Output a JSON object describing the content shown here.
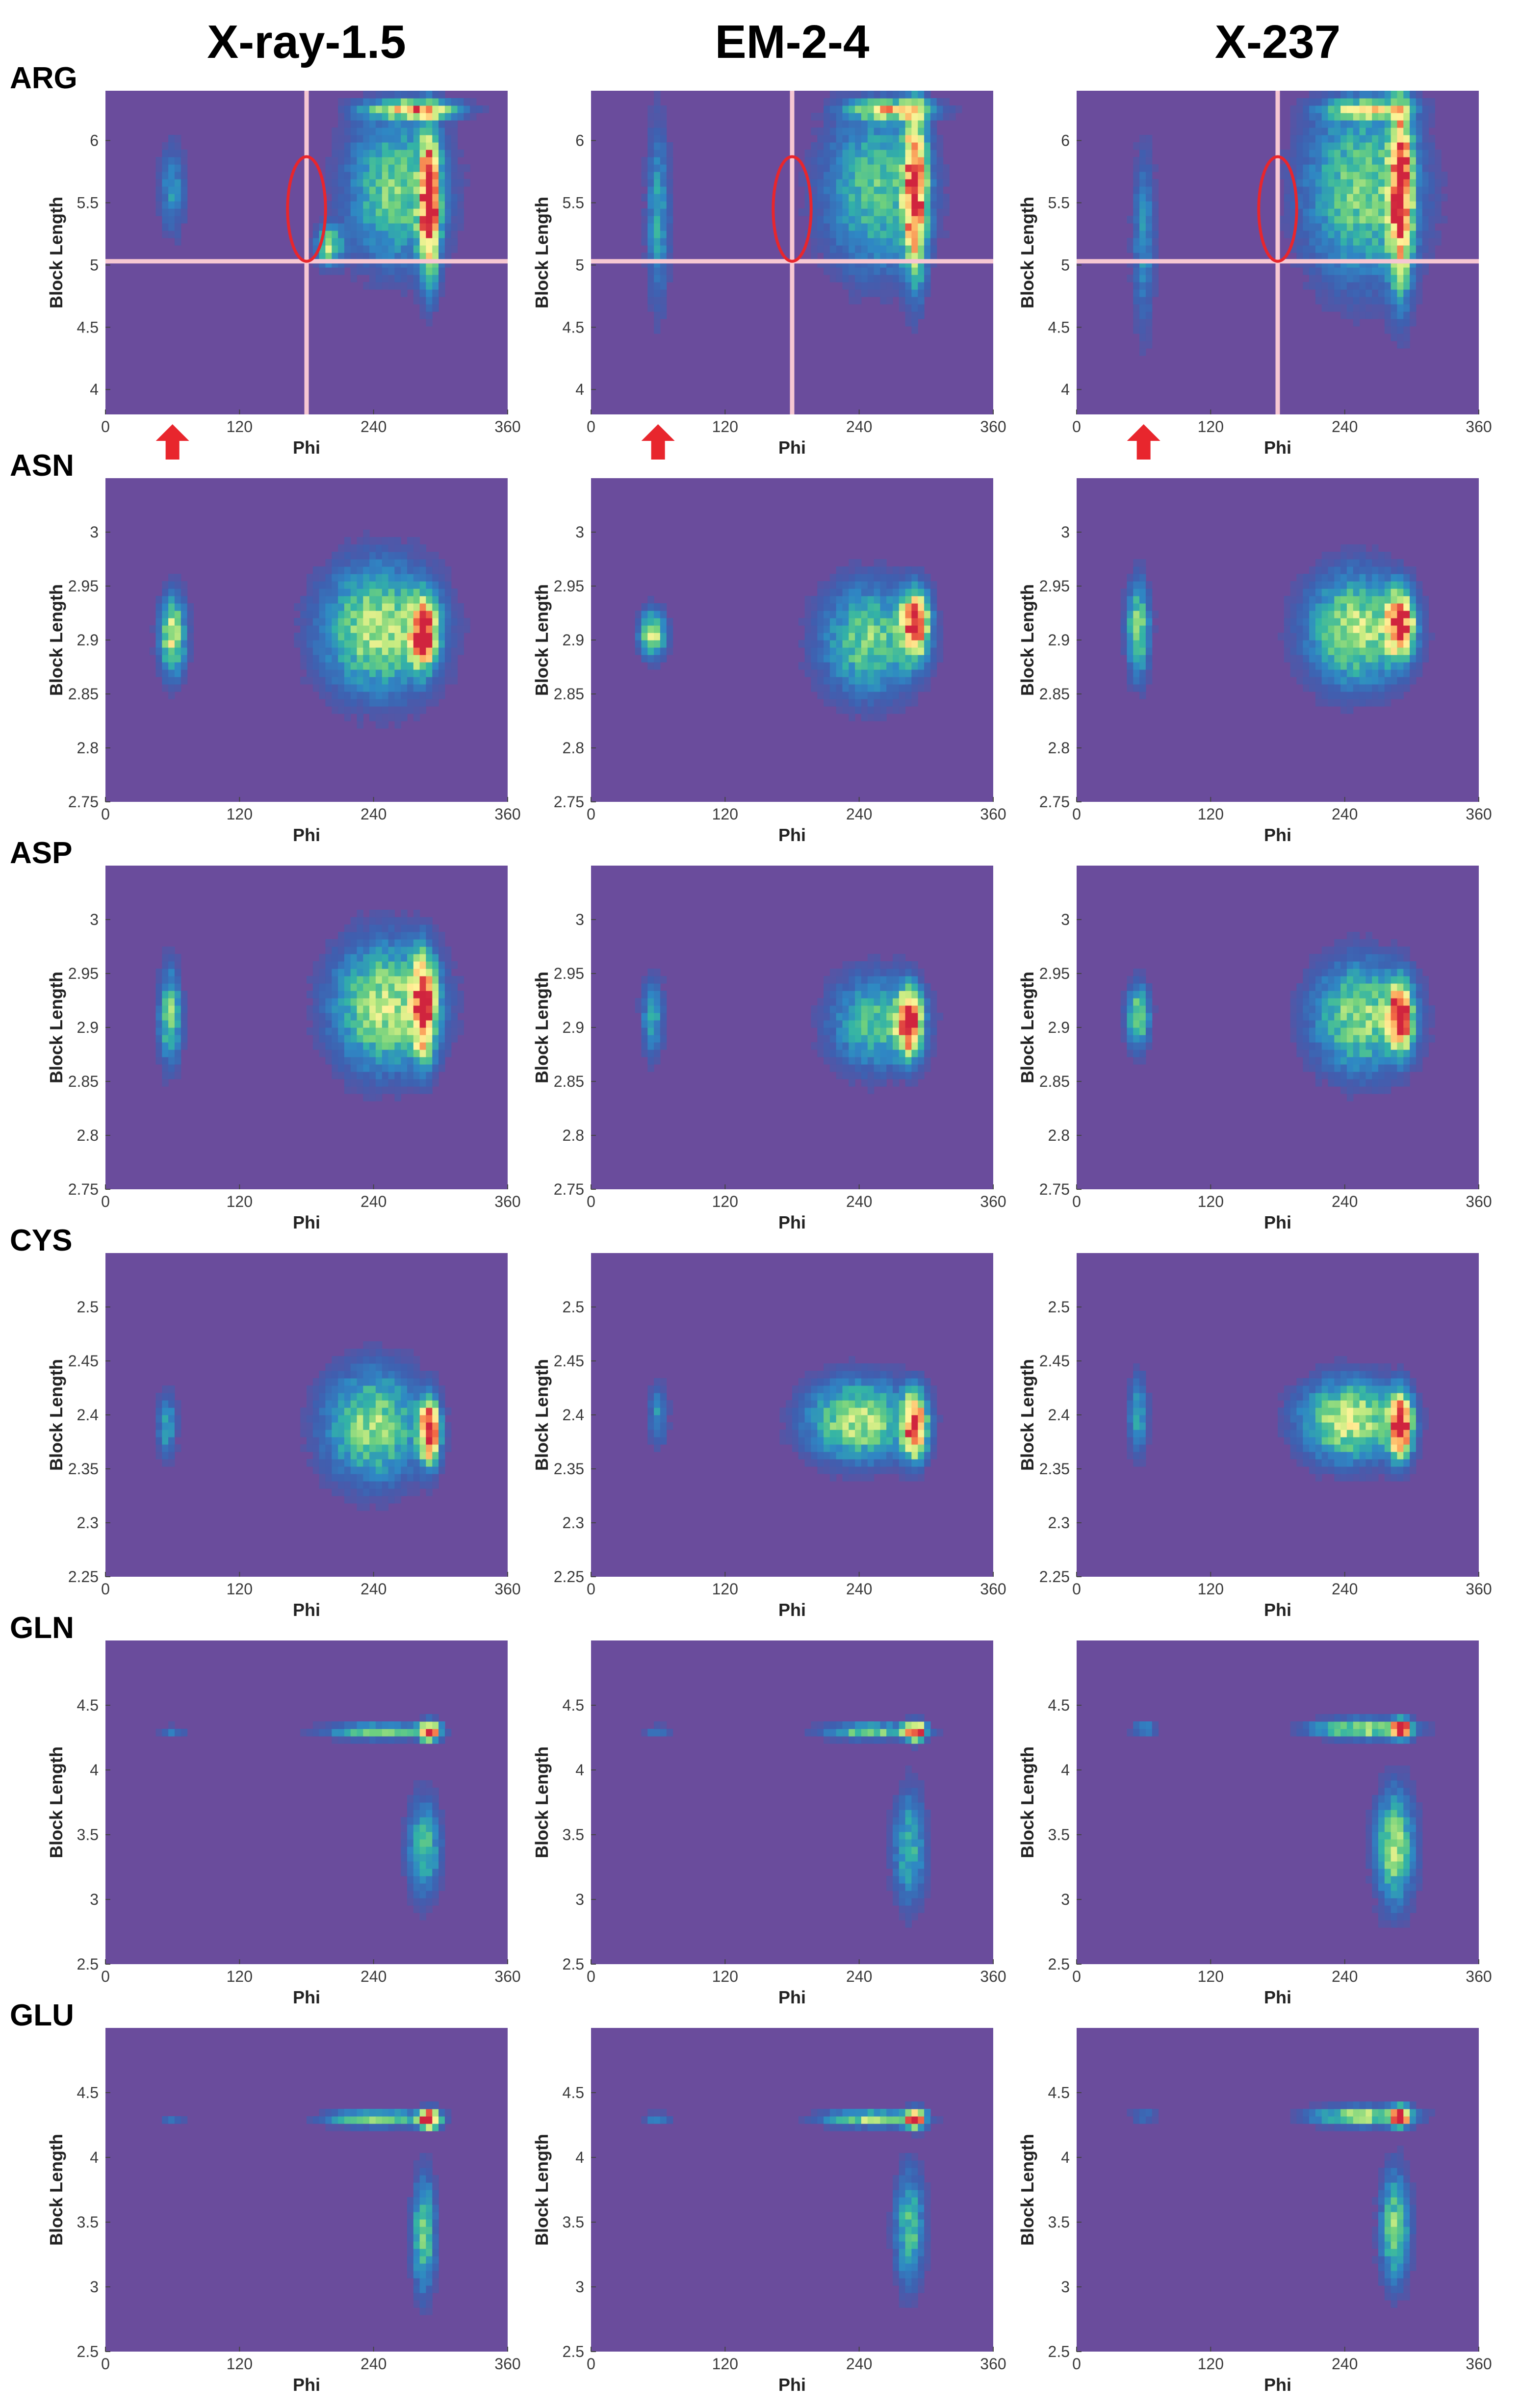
{
  "figure": {
    "columns": [
      "X-ray-1.5",
      "EM-2-4",
      "X-237"
    ],
    "rows": [
      "ARG",
      "ASN",
      "ASP",
      "CYS",
      "GLN",
      "GLU"
    ]
  },
  "colors": {
    "background": "#6a4c9c",
    "colormap": [
      "#6a4c9c",
      "#3f5fb0",
      "#2f87c4",
      "#33b3a6",
      "#6fd07e",
      "#c9ec82",
      "#fff49a",
      "#fdb766",
      "#f26b45",
      "#d0243e"
    ],
    "guide_lines": "#f6c7d2",
    "annotation": "#e8262d"
  },
  "chart_data": [
    {
      "type": "heatmap",
      "dataset": "X-ray-1.5",
      "residue": "ARG",
      "xlabel": "Phi",
      "ylabel": "Block Length",
      "xlim": [
        0,
        360
      ],
      "ylim": [
        3.8,
        6.4
      ],
      "xticks": [
        "0",
        "120",
        "240",
        "360"
      ],
      "yticks": [
        "4",
        "4.5",
        "5",
        "5.5",
        "6"
      ],
      "density_clusters": [
        {
          "phi": 60,
          "length": 5.6,
          "spread_phi": 8,
          "spread_length": 0.25,
          "peak": 0.25
        },
        {
          "phi": 260,
          "length": 5.6,
          "spread_phi": 30,
          "spread_length": 0.4,
          "peak": 0.45
        },
        {
          "phi": 290,
          "length": 5.5,
          "spread_phi": 6,
          "spread_length": 0.4,
          "peak": 0.95
        },
        {
          "phi": 275,
          "length": 6.25,
          "spread_phi": 28,
          "spread_length": 0.05,
          "peak": 0.7
        },
        {
          "phi": 200,
          "length": 5.15,
          "spread_phi": 8,
          "spread_length": 0.1,
          "peak": 0.5
        }
      ],
      "reference_lines": {
        "phi": 180,
        "length": 5.03
      },
      "circle": {
        "phi": 180,
        "length": 5.45,
        "r_phi": 17,
        "r_length": 0.42
      },
      "arrow_phi": 60
    },
    {
      "type": "heatmap",
      "dataset": "EM-2-4",
      "residue": "ARG",
      "xlabel": "Phi",
      "ylabel": "Block Length",
      "xlim": [
        0,
        360
      ],
      "ylim": [
        3.8,
        6.4
      ],
      "xticks": [
        "0",
        "120",
        "240",
        "360"
      ],
      "yticks": [
        "4",
        "4.5",
        "5",
        "5.5",
        "6"
      ],
      "density_clusters": [
        {
          "phi": 60,
          "length": 5.4,
          "spread_phi": 7,
          "spread_length": 0.5,
          "peak": 0.3
        },
        {
          "phi": 255,
          "length": 5.6,
          "spread_phi": 32,
          "spread_length": 0.45,
          "peak": 0.4
        },
        {
          "phi": 290,
          "length": 5.6,
          "spread_phi": 7,
          "spread_length": 0.45,
          "peak": 0.95
        },
        {
          "phi": 270,
          "length": 6.25,
          "spread_phi": 25,
          "spread_length": 0.05,
          "peak": 0.6
        }
      ],
      "reference_lines": {
        "phi": 180,
        "length": 5.03
      },
      "circle": {
        "phi": 180,
        "length": 5.45,
        "r_phi": 17,
        "r_length": 0.42
      },
      "arrow_phi": 60
    },
    {
      "type": "heatmap",
      "dataset": "X-237",
      "residue": "ARG",
      "xlabel": "Phi",
      "ylabel": "Block Length",
      "xlim": [
        0,
        360
      ],
      "ylim": [
        3.8,
        6.4
      ],
      "xticks": [
        "0",
        "120",
        "240",
        "360"
      ],
      "yticks": [
        "4",
        "4.5",
        "5",
        "5.5",
        "6"
      ],
      "density_clusters": [
        {
          "phi": 60,
          "length": 5.2,
          "spread_phi": 7,
          "spread_length": 0.5,
          "peak": 0.25
        },
        {
          "phi": 255,
          "length": 5.6,
          "spread_phi": 35,
          "spread_length": 0.5,
          "peak": 0.45
        },
        {
          "phi": 290,
          "length": 5.6,
          "spread_phi": 7,
          "spread_length": 0.5,
          "peak": 0.95
        },
        {
          "phi": 260,
          "length": 6.25,
          "spread_phi": 25,
          "spread_length": 0.05,
          "peak": 0.5
        }
      ],
      "reference_lines": {
        "phi": 180,
        "length": 5.03
      },
      "circle": {
        "phi": 180,
        "length": 5.45,
        "r_phi": 17,
        "r_length": 0.42
      },
      "arrow_phi": 60
    },
    {
      "type": "heatmap",
      "dataset": "X-ray-1.5",
      "residue": "ASN",
      "xlabel": "Phi",
      "ylabel": "Block Length",
      "xlim": [
        0,
        360
      ],
      "ylim": [
        2.75,
        3.05
      ],
      "xticks": [
        "0",
        "120",
        "240",
        "360"
      ],
      "yticks": [
        "2.75",
        "2.8",
        "2.85",
        "2.9",
        "2.95",
        "3"
      ],
      "density_clusters": [
        {
          "phi": 60,
          "length": 2.905,
          "spread_phi": 8,
          "spread_length": 0.025,
          "peak": 0.6
        },
        {
          "phi": 245,
          "length": 2.91,
          "spread_phi": 35,
          "spread_length": 0.04,
          "peak": 0.55
        },
        {
          "phi": 285,
          "length": 2.907,
          "spread_phi": 8,
          "spread_length": 0.02,
          "peak": 1.0
        }
      ]
    },
    {
      "type": "heatmap",
      "dataset": "EM-2-4",
      "residue": "ASN",
      "xlabel": "Phi",
      "ylabel": "Block Length",
      "xlim": [
        0,
        360
      ],
      "ylim": [
        2.75,
        3.05
      ],
      "xticks": [
        "0",
        "120",
        "240",
        "360"
      ],
      "yticks": [
        "2.75",
        "2.8",
        "2.85",
        "2.9",
        "2.95",
        "3"
      ],
      "density_clusters": [
        {
          "phi": 55,
          "length": 2.905,
          "spread_phi": 8,
          "spread_length": 0.015,
          "peak": 0.55
        },
        {
          "phi": 250,
          "length": 2.9,
          "spread_phi": 30,
          "spread_length": 0.035,
          "peak": 0.45
        },
        {
          "phi": 290,
          "length": 2.915,
          "spread_phi": 8,
          "spread_length": 0.02,
          "peak": 1.0
        }
      ]
    },
    {
      "type": "heatmap",
      "dataset": "X-237",
      "residue": "ASN",
      "xlabel": "Phi",
      "ylabel": "Block Length",
      "xlim": [
        0,
        360
      ],
      "ylim": [
        2.75,
        3.05
      ],
      "xticks": [
        "0",
        "120",
        "240",
        "360"
      ],
      "yticks": [
        "2.75",
        "2.8",
        "2.85",
        "2.9",
        "2.95",
        "3"
      ],
      "density_clusters": [
        {
          "phi": 55,
          "length": 2.91,
          "spread_phi": 7,
          "spread_length": 0.03,
          "peak": 0.5
        },
        {
          "phi": 250,
          "length": 2.91,
          "spread_phi": 30,
          "spread_length": 0.035,
          "peak": 0.55
        },
        {
          "phi": 290,
          "length": 2.915,
          "spread_phi": 8,
          "spread_length": 0.02,
          "peak": 1.0
        }
      ]
    },
    {
      "type": "heatmap",
      "dataset": "X-ray-1.5",
      "residue": "ASP",
      "xlabel": "Phi",
      "ylabel": "Block Length",
      "xlim": [
        0,
        360
      ],
      "ylim": [
        2.75,
        3.05
      ],
      "xticks": [
        "0",
        "120",
        "240",
        "360"
      ],
      "yticks": [
        "2.75",
        "2.8",
        "2.85",
        "2.9",
        "2.95",
        "3"
      ],
      "density_clusters": [
        {
          "phi": 58,
          "length": 2.91,
          "spread_phi": 7,
          "spread_length": 0.03,
          "peak": 0.45
        },
        {
          "phi": 250,
          "length": 2.92,
          "spread_phi": 32,
          "spread_length": 0.04,
          "peak": 0.55
        },
        {
          "phi": 285,
          "length": 2.92,
          "spread_phi": 7,
          "spread_length": 0.03,
          "peak": 1.0
        }
      ]
    },
    {
      "type": "heatmap",
      "dataset": "EM-2-4",
      "residue": "ASP",
      "xlabel": "Phi",
      "ylabel": "Block Length",
      "xlim": [
        0,
        360
      ],
      "ylim": [
        2.75,
        3.05
      ],
      "xticks": [
        "0",
        "120",
        "240",
        "360"
      ],
      "yticks": [
        "2.75",
        "2.8",
        "2.85",
        "2.9",
        "2.95",
        "3"
      ],
      "density_clusters": [
        {
          "phi": 55,
          "length": 2.91,
          "spread_phi": 7,
          "spread_length": 0.025,
          "peak": 0.3
        },
        {
          "phi": 255,
          "length": 2.905,
          "spread_phi": 28,
          "spread_length": 0.03,
          "peak": 0.4
        },
        {
          "phi": 285,
          "length": 2.905,
          "spread_phi": 7,
          "spread_length": 0.02,
          "peak": 1.0
        }
      ]
    },
    {
      "type": "heatmap",
      "dataset": "X-237",
      "residue": "ASP",
      "xlabel": "Phi",
      "ylabel": "Block Length",
      "xlim": [
        0,
        360
      ],
      "ylim": [
        2.75,
        3.05
      ],
      "xticks": [
        "0",
        "120",
        "240",
        "360"
      ],
      "yticks": [
        "2.75",
        "2.8",
        "2.85",
        "2.9",
        "2.95",
        "3"
      ],
      "density_clusters": [
        {
          "phi": 55,
          "length": 2.91,
          "spread_phi": 7,
          "spread_length": 0.02,
          "peak": 0.5
        },
        {
          "phi": 255,
          "length": 2.91,
          "spread_phi": 30,
          "spread_length": 0.035,
          "peak": 0.5
        },
        {
          "phi": 290,
          "length": 2.91,
          "spread_phi": 7,
          "spread_length": 0.02,
          "peak": 1.0
        }
      ]
    },
    {
      "type": "heatmap",
      "dataset": "X-ray-1.5",
      "residue": "CYS",
      "xlabel": "Phi",
      "ylabel": "Block Length",
      "xlim": [
        0,
        360
      ],
      "ylim": [
        2.25,
        2.55
      ],
      "xticks": [
        "0",
        "120",
        "240",
        "360"
      ],
      "yticks": [
        "2.25",
        "2.3",
        "2.35",
        "2.4",
        "2.45",
        "2.5"
      ],
      "density_clusters": [
        {
          "phi": 55,
          "length": 2.39,
          "spread_phi": 6,
          "spread_length": 0.02,
          "peak": 0.3
        },
        {
          "phi": 240,
          "length": 2.39,
          "spread_phi": 30,
          "spread_length": 0.035,
          "peak": 0.5
        },
        {
          "phi": 290,
          "length": 2.385,
          "spread_phi": 6,
          "spread_length": 0.02,
          "peak": 1.0
        }
      ]
    },
    {
      "type": "heatmap",
      "dataset": "EM-2-4",
      "residue": "CYS",
      "xlabel": "Phi",
      "ylabel": "Block Length",
      "xlim": [
        0,
        360
      ],
      "ylim": [
        2.25,
        2.55
      ],
      "xticks": [
        "0",
        "120",
        "240",
        "360"
      ],
      "yticks": [
        "2.25",
        "2.3",
        "2.35",
        "2.4",
        "2.45",
        "2.5"
      ],
      "density_clusters": [
        {
          "phi": 60,
          "length": 2.4,
          "spread_phi": 6,
          "spread_length": 0.02,
          "peak": 0.25
        },
        {
          "phi": 240,
          "length": 2.395,
          "spread_phi": 32,
          "spread_length": 0.025,
          "peak": 0.55
        },
        {
          "phi": 290,
          "length": 2.39,
          "spread_phi": 7,
          "spread_length": 0.02,
          "peak": 1.0
        }
      ]
    },
    {
      "type": "heatmap",
      "dataset": "X-237",
      "residue": "CYS",
      "xlabel": "Phi",
      "ylabel": "Block Length",
      "xlim": [
        0,
        360
      ],
      "ylim": [
        2.25,
        2.55
      ],
      "xticks": [
        "0",
        "120",
        "240",
        "360"
      ],
      "yticks": [
        "2.25",
        "2.3",
        "2.35",
        "2.4",
        "2.45",
        "2.5"
      ],
      "density_clusters": [
        {
          "phi": 55,
          "length": 2.4,
          "spread_phi": 6,
          "spread_length": 0.025,
          "peak": 0.3
        },
        {
          "phi": 245,
          "length": 2.395,
          "spread_phi": 30,
          "spread_length": 0.025,
          "peak": 0.6
        },
        {
          "phi": 290,
          "length": 2.39,
          "spread_phi": 7,
          "spread_length": 0.02,
          "peak": 1.0
        }
      ]
    },
    {
      "type": "heatmap",
      "dataset": "X-ray-1.5",
      "residue": "GLN",
      "xlabel": "Phi",
      "ylabel": "Block Length",
      "xlim": [
        0,
        360
      ],
      "ylim": [
        2.5,
        5.0
      ],
      "xticks": [
        "0",
        "120",
        "240",
        "360"
      ],
      "yticks": [
        "2.5",
        "3",
        "3.5",
        "4",
        "4.5"
      ],
      "density_clusters": [
        {
          "phi": 60,
          "length": 4.3,
          "spread_phi": 8,
          "spread_length": 0.03,
          "peak": 0.2
        },
        {
          "phi": 245,
          "length": 4.3,
          "spread_phi": 32,
          "spread_length": 0.04,
          "peak": 0.45
        },
        {
          "phi": 290,
          "length": 4.3,
          "spread_phi": 6,
          "spread_length": 0.05,
          "peak": 1.0
        },
        {
          "phi": 285,
          "length": 3.4,
          "spread_phi": 10,
          "spread_length": 0.25,
          "peak": 0.4
        }
      ]
    },
    {
      "type": "heatmap",
      "dataset": "EM-2-4",
      "residue": "GLN",
      "xlabel": "Phi",
      "ylabel": "Block Length",
      "xlim": [
        0,
        360
      ],
      "ylim": [
        2.5,
        5.0
      ],
      "xticks": [
        "0",
        "120",
        "240",
        "360"
      ],
      "yticks": [
        "2.5",
        "3",
        "3.5",
        "4",
        "4.5"
      ],
      "density_clusters": [
        {
          "phi": 60,
          "length": 4.3,
          "spread_phi": 8,
          "spread_length": 0.03,
          "peak": 0.2
        },
        {
          "phi": 250,
          "length": 4.3,
          "spread_phi": 30,
          "spread_length": 0.04,
          "peak": 0.45
        },
        {
          "phi": 290,
          "length": 4.3,
          "spread_phi": 6,
          "spread_length": 0.05,
          "peak": 1.0
        },
        {
          "phi": 285,
          "length": 3.4,
          "spread_phi": 10,
          "spread_length": 0.3,
          "peak": 0.35
        }
      ]
    },
    {
      "type": "heatmap",
      "dataset": "X-237",
      "residue": "GLN",
      "xlabel": "Phi",
      "ylabel": "Block Length",
      "xlim": [
        0,
        360
      ],
      "ylim": [
        2.5,
        5.0
      ],
      "xticks": [
        "0",
        "120",
        "240",
        "360"
      ],
      "yticks": [
        "2.5",
        "3",
        "3.5",
        "4",
        "4.5"
      ],
      "density_clusters": [
        {
          "phi": 60,
          "length": 4.32,
          "spread_phi": 8,
          "spread_length": 0.03,
          "peak": 0.3
        },
        {
          "phi": 255,
          "length": 4.32,
          "spread_phi": 30,
          "spread_length": 0.05,
          "peak": 0.55
        },
        {
          "phi": 290,
          "length": 4.32,
          "spread_phi": 6,
          "spread_length": 0.05,
          "peak": 1.0
        },
        {
          "phi": 285,
          "length": 3.4,
          "spread_phi": 12,
          "spread_length": 0.3,
          "peak": 0.5
        }
      ]
    },
    {
      "type": "heatmap",
      "dataset": "X-ray-1.5",
      "residue": "GLU",
      "xlabel": "Phi",
      "ylabel": "Block Length",
      "xlim": [
        0,
        360
      ],
      "ylim": [
        2.5,
        5.0
      ],
      "xticks": [
        "0",
        "120",
        "240",
        "360"
      ],
      "yticks": [
        "2.5",
        "3",
        "3.5",
        "4",
        "4.5"
      ],
      "density_clusters": [
        {
          "phi": 60,
          "length": 4.3,
          "spread_phi": 8,
          "spread_length": 0.03,
          "peak": 0.15
        },
        {
          "phi": 245,
          "length": 4.3,
          "spread_phi": 32,
          "spread_length": 0.04,
          "peak": 0.5
        },
        {
          "phi": 290,
          "length": 4.3,
          "spread_phi": 6,
          "spread_length": 0.05,
          "peak": 1.0
        },
        {
          "phi": 285,
          "length": 3.4,
          "spread_phi": 7,
          "spread_length": 0.3,
          "peak": 0.45
        }
      ]
    },
    {
      "type": "heatmap",
      "dataset": "EM-2-4",
      "residue": "GLU",
      "xlabel": "Phi",
      "ylabel": "Block Length",
      "xlim": [
        0,
        360
      ],
      "ylim": [
        2.5,
        5.0
      ],
      "xticks": [
        "0",
        "120",
        "240",
        "360"
      ],
      "yticks": [
        "2.5",
        "3",
        "3.5",
        "4",
        "4.5"
      ],
      "density_clusters": [
        {
          "phi": 60,
          "length": 4.3,
          "spread_phi": 8,
          "spread_length": 0.03,
          "peak": 0.25
        },
        {
          "phi": 250,
          "length": 4.3,
          "spread_phi": 30,
          "spread_length": 0.04,
          "peak": 0.5
        },
        {
          "phi": 290,
          "length": 4.3,
          "spread_phi": 6,
          "spread_length": 0.05,
          "peak": 1.0
        },
        {
          "phi": 285,
          "length": 3.45,
          "spread_phi": 9,
          "spread_length": 0.3,
          "peak": 0.4
        }
      ]
    },
    {
      "type": "heatmap",
      "dataset": "X-237",
      "residue": "GLU",
      "xlabel": "Phi",
      "ylabel": "Block Length",
      "xlim": [
        0,
        360
      ],
      "ylim": [
        2.5,
        5.0
      ],
      "xticks": [
        "0",
        "120",
        "240",
        "360"
      ],
      "yticks": [
        "2.5",
        "3",
        "3.5",
        "4",
        "4.5"
      ],
      "density_clusters": [
        {
          "phi": 60,
          "length": 4.32,
          "spread_phi": 8,
          "spread_length": 0.03,
          "peak": 0.25
        },
        {
          "phi": 255,
          "length": 4.32,
          "spread_phi": 30,
          "spread_length": 0.05,
          "peak": 0.55
        },
        {
          "phi": 290,
          "length": 4.32,
          "spread_phi": 6,
          "spread_length": 0.05,
          "peak": 1.0
        },
        {
          "phi": 285,
          "length": 3.45,
          "spread_phi": 9,
          "spread_length": 0.3,
          "peak": 0.45
        }
      ]
    }
  ]
}
